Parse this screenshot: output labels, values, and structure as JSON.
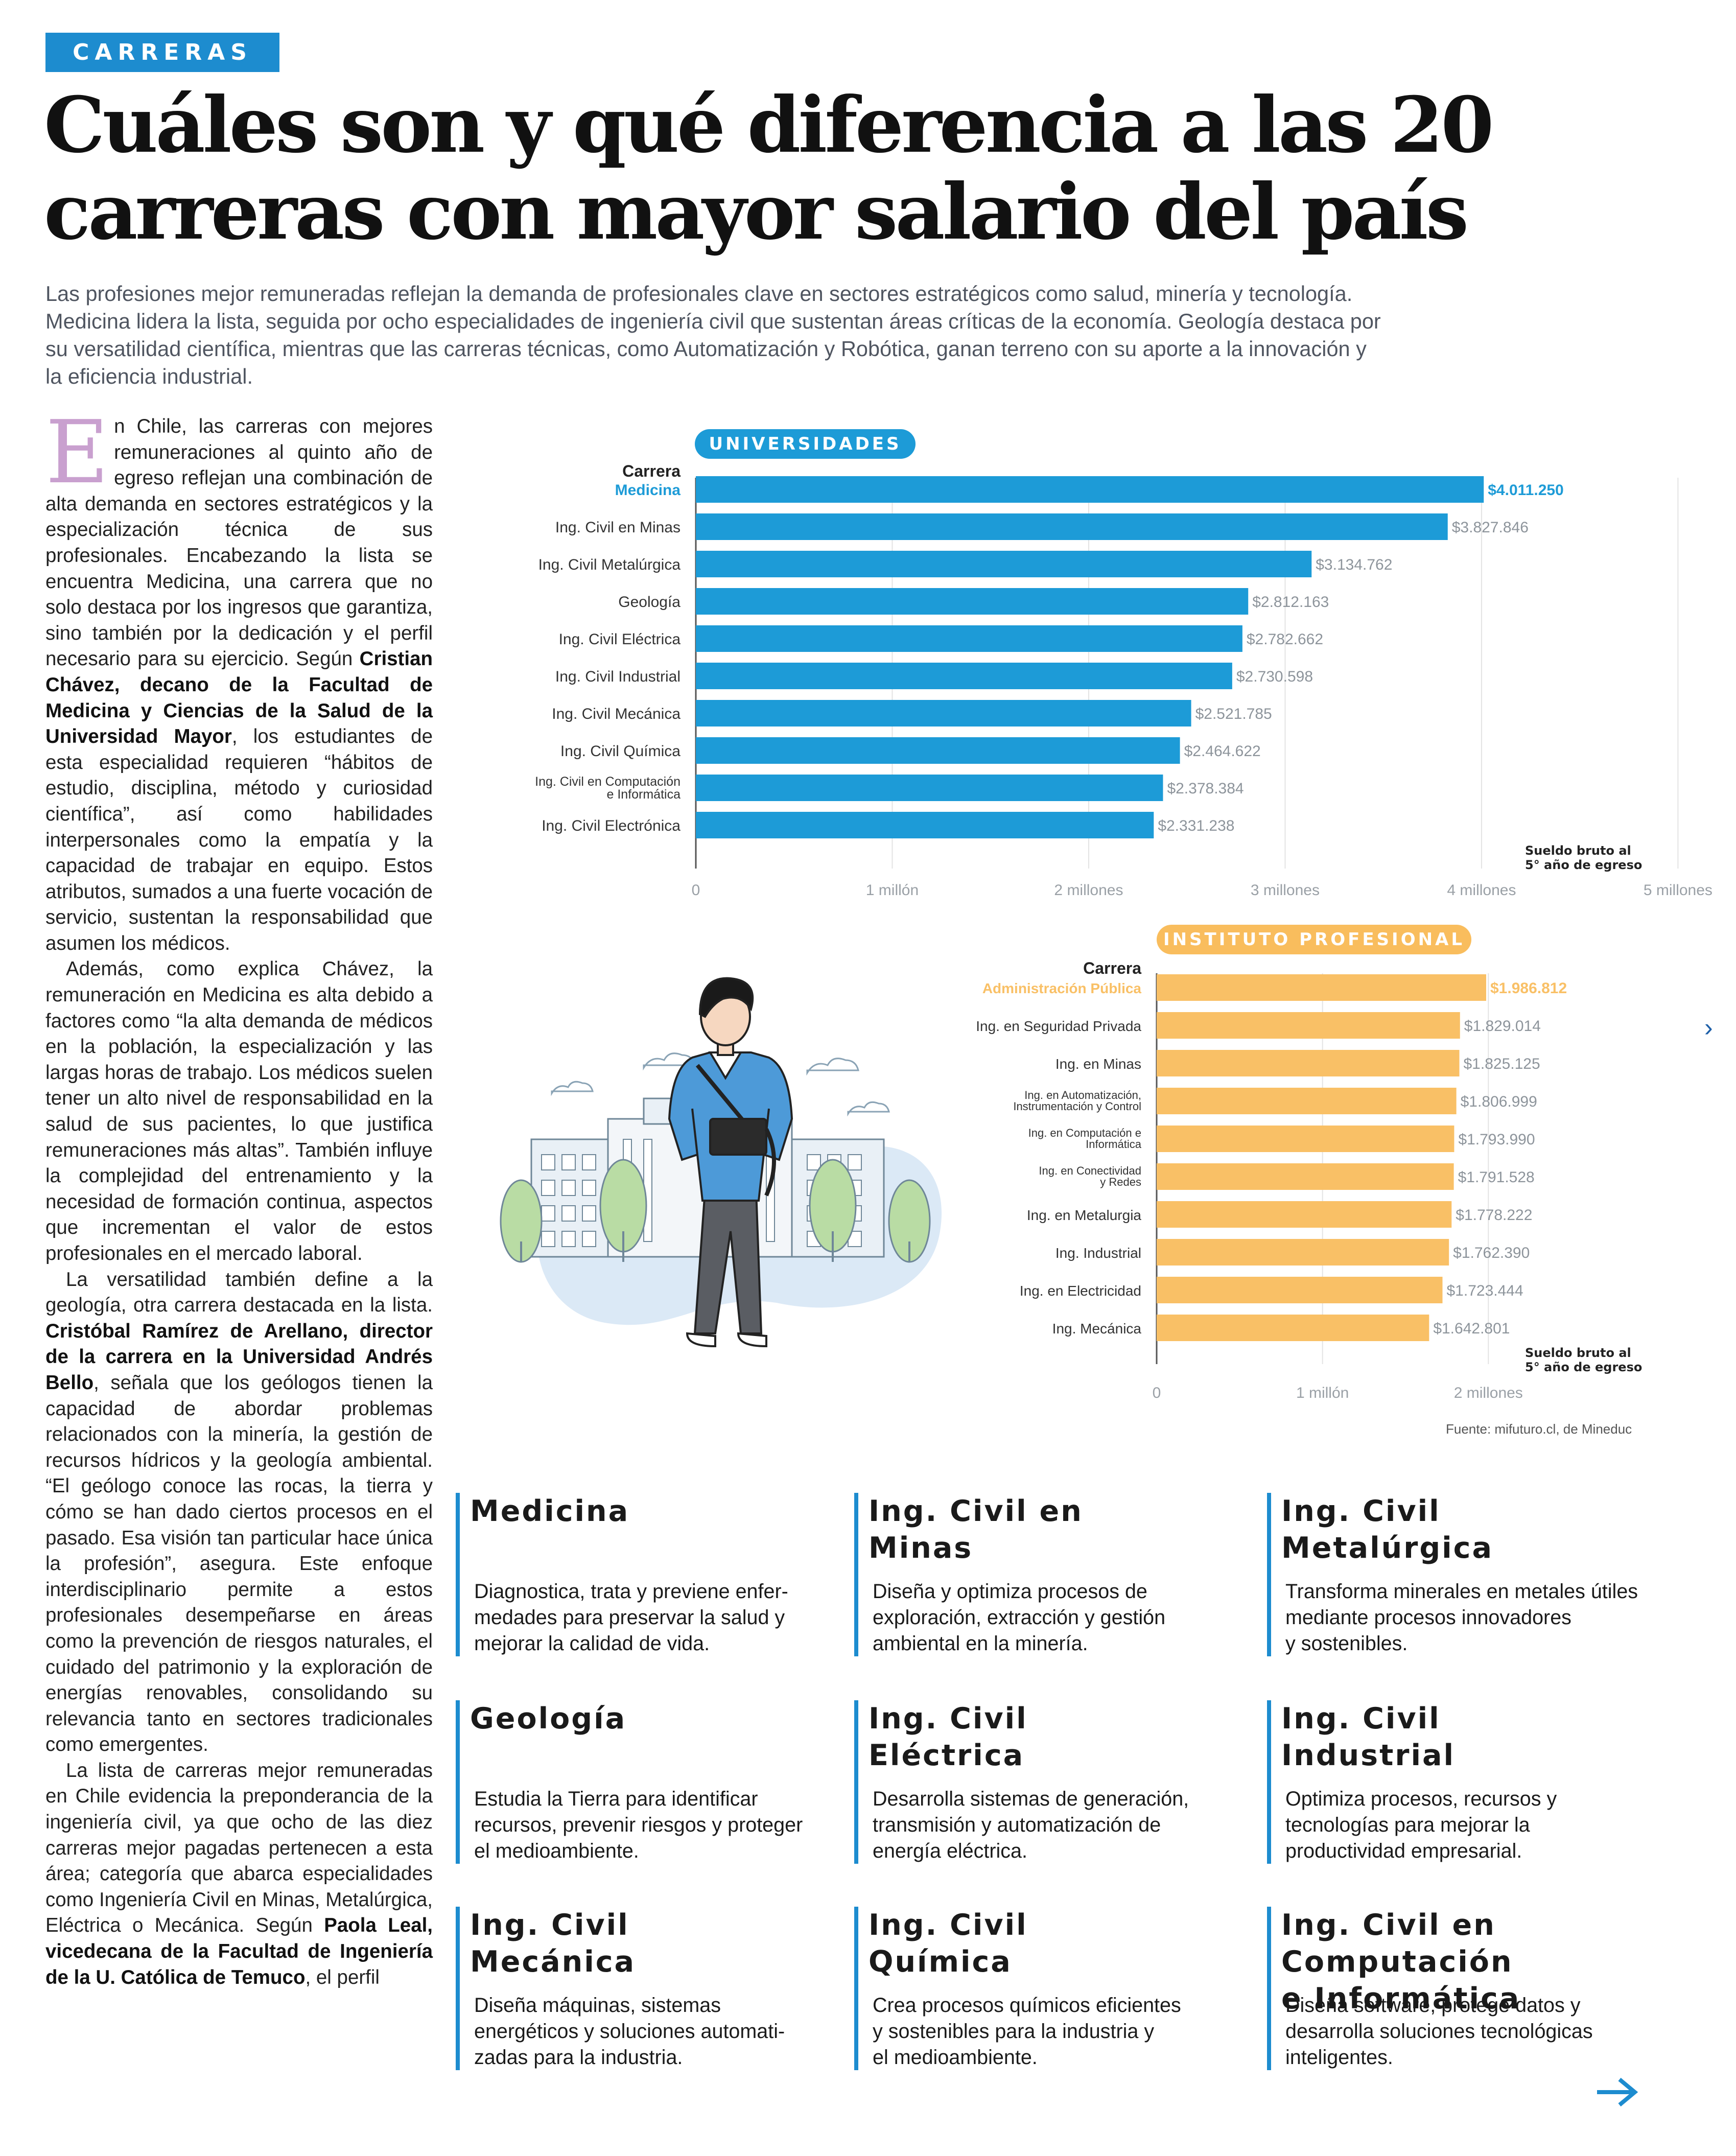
{
  "section": "CARRERAS",
  "headline": {
    "line1": "Cuáles son y qué diferencia a las 20",
    "line2": "carreras con mayor salario del país"
  },
  "dek": [
    "Las profesiones mejor remuneradas reflejan la demanda de profesionales clave en sectores estratégicos como salud, minería y tecnología.",
    "Medicina lidera la lista, seguida por ocho especialidades de ingeniería civil que sustentan áreas críticas de la economía. Geología destaca por",
    "su versatilidad científica, mientras que las carreras técnicas, como Automatización y Robótica, ganan terreno con su aporte a la innovación y",
    "la eficiencia industrial."
  ],
  "body": {
    "dropcap": "E",
    "p1_a": "n Chile, las carreras con mejores remuneraciones al quinto año de egreso reflejan una combinación de alta demanda en sectores estratégicos y la especialización técnica de sus profesionales. Encabezando la lista se encuentra Medicina, una carrera que no solo destaca por los ingresos que garantiza, sino también por la dedicación y el perfil necesario para su ejercicio. Según ",
    "p1_b": "Cristian Chávez, decano de la Facultad de Medicina y Ciencias de la Salud de la Universidad Mayor",
    "p1_c": ", los estudiantes de esta especialidad requieren “hábitos de estudio, disciplina, método y curiosidad científica”, así como habilidades interpersonales como la empatía y la capacidad de trabajar en equipo. Estos atributos, sumados a una fuerte vocación de servicio, sustentan la responsabilidad que asumen los médicos.",
    "p2": "Además, como explica Chávez, la remuneración en Medicina es alta debido a factores como “la alta demanda de médicos en la población, la especialización y las largas horas de trabajo. Los médicos suelen tener un alto nivel de responsabilidad en la salud de sus pacientes, lo que justifica remuneraciones más altas”. También influye la complejidad del entrenamiento y la necesidad de formación continua, aspectos que incrementan el valor de estos profesionales en el mercado laboral.",
    "p3_a": "La versatilidad también define a la geología, otra carrera destacada en la lista. ",
    "p3_b": "Cristóbal Ramírez de Arellano, director de la carrera en la Universidad Andrés Bello",
    "p3_c": ", señala que los geólogos tienen la capacidad de abordar problemas relacionados con la minería, la gestión de recursos hídricos y la geología ambiental. “El geólogo conoce las rocas, la tierra y cómo se han dado ciertos procesos en el pasado. Esa visión tan particular hace única la profesión”, asegura. Este enfoque interdisciplinario permite a estos profesionales desempeñarse en áreas como la prevención de riesgos naturales, el cuidado del patrimonio y la exploración de energías renovables, consolidando su relevancia tanto en sectores tradicionales como emergentes.",
    "p4_a": "La lista de carreras mejor remuneradas en Chile evidencia la preponderancia de la ingeniería civil, ya que ocho de las diez carreras mejor pagadas pertenecen a esta área; categoría que abarca especialidades como Ingeniería Civil en Minas, Metalúrgica, Eléctrica o Mecánica. Según ",
    "p4_b": "Paola Leal, vicedecana de la Facultad de Ingeniería de la U. Católica de Temuco",
    "p4_c": ", el perfil"
  },
  "chart_data": [
    {
      "type": "bar",
      "orientation": "horizontal",
      "title": "UNIVERSIDADES",
      "category_header": "Carrera",
      "unit_note": [
        "Sueldo bruto al",
        "5° año de egreso"
      ],
      "categories": [
        "Medicina",
        "Ing. Civil en Minas",
        "Ing. Civil Metalúrgica",
        "Geología",
        "Ing. Civil Eléctrica",
        "Ing. Civil Industrial",
        "Ing. Civil Mecánica",
        "Ing. Civil Química",
        "Ing. Civil en Computación e Informática",
        "Ing. Civil Electrónica"
      ],
      "category_lines": [
        [
          "Medicina"
        ],
        [
          "Ing. Civil en Minas"
        ],
        [
          "Ing. Civil Metalúrgica"
        ],
        [
          "Geología"
        ],
        [
          "Ing. Civil Eléctrica"
        ],
        [
          "Ing. Civil Industrial"
        ],
        [
          "Ing. Civil Mecánica"
        ],
        [
          "Ing. Civil Química"
        ],
        [
          "Ing. Civil en Computación",
          "e Informática"
        ],
        [
          "Ing. Civil Electrónica"
        ]
      ],
      "values": [
        4011250,
        3827846,
        3134762,
        2812163,
        2782662,
        2730598,
        2521785,
        2464622,
        2378384,
        2331238
      ],
      "value_labels": [
        "$4.011.250",
        "$3.827.846",
        "$3.134.762",
        "$2.812.163",
        "$2.782.662",
        "$2.730.598",
        "$2.521.785",
        "$2.464.622",
        "$2.378.384",
        "$2.331.238"
      ],
      "xticks": [
        0,
        1000000,
        2000000,
        3000000,
        4000000,
        5000000
      ],
      "xtick_labels": [
        "0",
        "1 millón",
        "2 millones",
        "3 millones",
        "4 millones",
        "5 millones"
      ],
      "xlim": [
        0,
        5000000
      ],
      "grid": true,
      "highlight_index": 0,
      "color": "#1d9bd7"
    },
    {
      "type": "bar",
      "orientation": "horizontal",
      "title": "INSTITUTO PROFESIONAL",
      "category_header": "Carrera",
      "unit_note": [
        "Sueldo bruto al",
        "5° año de egreso"
      ],
      "categories": [
        "Administración Pública",
        "Ing. en Seguridad Privada",
        "Ing. en Minas",
        "Ing. en Automatización, Instrumentación y Control",
        "Ing. en Computación e Informática",
        "Ing. en Conectividad y Redes",
        "Ing. en Metalurgia",
        "Ing. Industrial",
        "Ing. en Electricidad",
        "Ing. Mecánica"
      ],
      "category_lines": [
        [
          "Administración Pública"
        ],
        [
          "Ing. en Seguridad Privada"
        ],
        [
          "Ing. en Minas"
        ],
        [
          "Ing. en Automatización,",
          "Instrumentación y Control"
        ],
        [
          "Ing. en Computación e",
          "Informática"
        ],
        [
          "Ing. en Conectividad",
          "y Redes"
        ],
        [
          "Ing. en Metalurgia"
        ],
        [
          "Ing. Industrial"
        ],
        [
          "Ing. en Electricidad"
        ],
        [
          "Ing. Mecánica"
        ]
      ],
      "values": [
        1986812,
        1829014,
        1825125,
        1806999,
        1793990,
        1791528,
        1778222,
        1762390,
        1723444,
        1642801
      ],
      "value_labels": [
        "$1.986.812",
        "$1.829.014",
        "$1.825.125",
        "$1.806.999",
        "$1.793.990",
        "$1.791.528",
        "$1.778.222",
        "$1.762.390",
        "$1.723.444",
        "$1.642.801"
      ],
      "xticks": [
        0,
        1000000,
        2000000
      ],
      "xtick_labels": [
        "0",
        "1 millón",
        "2 millones"
      ],
      "xlim": [
        0,
        2000000
      ],
      "grid": true,
      "highlight_index": 0,
      "color": "#f9c066"
    }
  ],
  "source": "Fuente: mifuturo.cl, de Mineduc",
  "cards": [
    {
      "title": [
        "Medicina"
      ],
      "desc": [
        "Diagnostica, trata y previene enfer-",
        "medades para preservar la salud y",
        "mejorar la calidad de vida."
      ]
    },
    {
      "title": [
        "Ing. Civil en",
        "Minas"
      ],
      "desc": [
        "Diseña y optimiza procesos de",
        "exploración, extracción y gestión",
        "ambiental en la minería."
      ]
    },
    {
      "title": [
        "Ing. Civil",
        "Metalúrgica"
      ],
      "desc": [
        "Transforma minerales en metales útiles",
        "mediante procesos innovadores",
        " y sostenibles."
      ]
    },
    {
      "title": [
        "Geología"
      ],
      "desc": [
        "Estudia la Tierra para identificar",
        "recursos, prevenir riesgos y proteger",
        "el medioambiente."
      ]
    },
    {
      "title": [
        "Ing. Civil",
        "Eléctrica"
      ],
      "desc": [
        "Desarrolla sistemas de generación,",
        "transmisión y automatización de",
        "energía eléctrica."
      ]
    },
    {
      "title": [
        "Ing. Civil",
        "Industrial"
      ],
      "desc": [
        "Optimiza procesos, recursos y",
        "tecnologías para mejorar la",
        "productividad empresarial."
      ]
    },
    {
      "title": [
        "Ing. Civil",
        "Mecánica"
      ],
      "desc": [
        "Diseña máquinas, sistemas",
        "energéticos y soluciones automati-",
        "zadas para la industria."
      ]
    },
    {
      "title": [
        "Ing. Civil",
        "Química"
      ],
      "desc": [
        "Crea procesos químicos eficientes",
        " y sostenibles para la industria y",
        "el medioambiente."
      ]
    },
    {
      "title": [
        "Ing. Civil en Computación",
        "e Informática"
      ],
      "desc": [
        "Diseña software, protege datos y",
        "desarrolla soluciones tecnológicas",
        " inteligentes."
      ]
    }
  ],
  "icons": {
    "next_page": "chevron-right-icon",
    "continue": "arrow-right-icon",
    "illustration": "student-with-laptop-bag-in-front-of-campus-illustration"
  },
  "colors": {
    "accent_blue": "#1d8ccf",
    "bar_blue": "#1d9bd7",
    "bar_orange": "#f9c066",
    "dropcap": "#c9a0cf"
  }
}
